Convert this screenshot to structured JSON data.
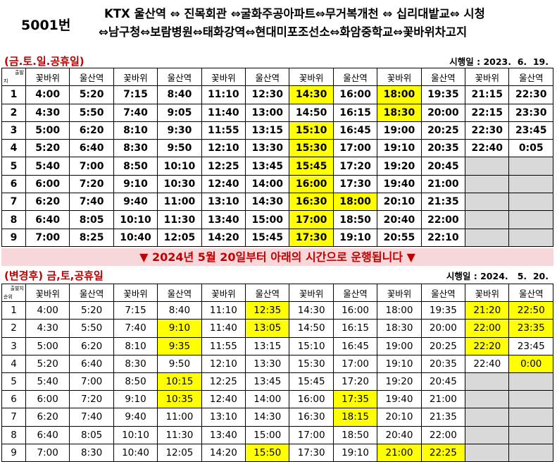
{
  "route": "5001번",
  "stops_line1": "KTX 울산역 ⇔ 진목회관 ⇔굴화주공아파트⇔무거복개천 ⇔ 십리대밭교⇔ 시청",
  "stops_line2": "⇔남구청⇔보람병원⇔태화강역⇔현대미포조선소⇔화암중학교⇔꽃바위차고지",
  "section1": {
    "label": "(금.토.일.공휴일)",
    "date": "시행일 : 2023.  6.  19.",
    "corner_top": "출발",
    "corner_bottom": "지",
    "headers": [
      "꽃바위",
      "울산역",
      "꽃바위",
      "울산역",
      "꽃바위",
      "울산역",
      "꽃바위",
      "울산역",
      "꽃바위",
      "울산역",
      "꽃바위",
      "울산역"
    ],
    "rows": [
      {
        "no": "1",
        "cells": [
          "4:00",
          "5:20",
          "7:15",
          "8:40",
          "11:10",
          "12:30",
          "14:30",
          "16:00",
          "18:00",
          "19:35",
          "21:15",
          "22:30"
        ]
      },
      {
        "no": "2",
        "cells": [
          "4:30",
          "5:50",
          "7:40",
          "9:05",
          "11:40",
          "13:00",
          "14:50",
          "16:15",
          "18:30",
          "20:00",
          "22:15",
          "23:30"
        ]
      },
      {
        "no": "3",
        "cells": [
          "5:00",
          "6:20",
          "8:10",
          "9:30",
          "11:55",
          "13:15",
          "15:10",
          "16:45",
          "19:00",
          "20:25",
          "22:30",
          "23:45"
        ]
      },
      {
        "no": "4",
        "cells": [
          "5:20",
          "6:40",
          "8:30",
          "9:50",
          "12:10",
          "13:30",
          "15:30",
          "17:00",
          "19:10",
          "20:35",
          "22:40",
          "0:05"
        ]
      },
      {
        "no": "5",
        "cells": [
          "5:40",
          "7:00",
          "8:50",
          "10:10",
          "12:25",
          "13:45",
          "15:45",
          "17:20",
          "19:20",
          "20:45",
          "",
          ""
        ]
      },
      {
        "no": "6",
        "cells": [
          "6:00",
          "7:20",
          "9:10",
          "10:30",
          "12:40",
          "14:00",
          "16:00",
          "17:30",
          "19:40",
          "21:00",
          "",
          ""
        ]
      },
      {
        "no": "7",
        "cells": [
          "6:20",
          "7:40",
          "9:40",
          "11:00",
          "13:10",
          "14:30",
          "16:30",
          "18:00",
          "20:10",
          "21:35",
          "",
          ""
        ]
      },
      {
        "no": "8",
        "cells": [
          "6:40",
          "8:05",
          "10:10",
          "11:30",
          "13:40",
          "15:00",
          "17:00",
          "18:50",
          "20:40",
          "22:00",
          "",
          ""
        ]
      },
      {
        "no": "9",
        "cells": [
          "7:00",
          "8:25",
          "10:40",
          "12:05",
          "14:20",
          "15:45",
          "17:30",
          "19:10",
          "20:55",
          "22:10",
          "",
          ""
        ]
      }
    ]
  },
  "notice": "▼ 2024년 5월 20일부터 아래의 시간으로 운행됩니다 ▼",
  "section2": {
    "label": "(변경후) 금,토,공휴일",
    "date": "시행일 : 2024.   5.  20.",
    "corner_top": "출발지",
    "corner_bottom": "순위",
    "headers": [
      "꽃바위",
      "울산역",
      "꽃바위",
      "울산역",
      "꽃바위",
      "울산역",
      "꽃바위",
      "울산역",
      "꽃바위",
      "울산역",
      "꽃바위",
      "울산역"
    ],
    "rows": [
      {
        "no": "1",
        "cells": [
          "4:00",
          "5:20",
          "7:15",
          "8:40",
          "11:10",
          "12:35",
          "14:30",
          "16:00",
          "18:00",
          "19:35",
          "21:20",
          "22:50"
        ]
      },
      {
        "no": "2",
        "cells": [
          "4:30",
          "5:50",
          "7:40",
          "9:10",
          "11:40",
          "13:05",
          "14:50",
          "16:15",
          "18:30",
          "20:00",
          "22:00",
          "23:35"
        ]
      },
      {
        "no": "3",
        "cells": [
          "5:00",
          "6:20",
          "8:10",
          "9:35",
          "11:55",
          "13:15",
          "15:10",
          "16:45",
          "19:00",
          "20:25",
          "22:20",
          "23:45"
        ]
      },
      {
        "no": "4",
        "cells": [
          "5:20",
          "6:40",
          "8:30",
          "9:50",
          "12:10",
          "13:30",
          "15:30",
          "17:00",
          "19:10",
          "20:35",
          "22:40",
          "0:00"
        ]
      },
      {
        "no": "5",
        "cells": [
          "5:40",
          "7:00",
          "8:50",
          "10:15",
          "12:25",
          "13:45",
          "15:45",
          "17:20",
          "19:20",
          "20:45",
          "",
          ""
        ]
      },
      {
        "no": "6",
        "cells": [
          "6:00",
          "7:20",
          "9:10",
          "10:35",
          "12:40",
          "14:00",
          "16:00",
          "17:35",
          "19:40",
          "21:00",
          "",
          ""
        ]
      },
      {
        "no": "7",
        "cells": [
          "6:20",
          "7:40",
          "9:40",
          "11:00",
          "13:10",
          "14:30",
          "16:30",
          "18:15",
          "20:10",
          "21:35",
          "",
          ""
        ]
      },
      {
        "no": "8",
        "cells": [
          "6:40",
          "8:05",
          "10:10",
          "11:30",
          "13:40",
          "15:00",
          "17:00",
          "18:50",
          "20:40",
          "22:00",
          "",
          ""
        ]
      },
      {
        "no": "9",
        "cells": [
          "7:00",
          "8:30",
          "10:40",
          "12:05",
          "14:20",
          "15:50",
          "17:30",
          "19:10",
          "21:00",
          "22:25",
          "",
          ""
        ]
      }
    ]
  },
  "colors": {
    "highlight": "#ffff00",
    "empty": "#d9d9d9",
    "label_red": "#c00000",
    "notice_bg": "#f8d7da"
  }
}
